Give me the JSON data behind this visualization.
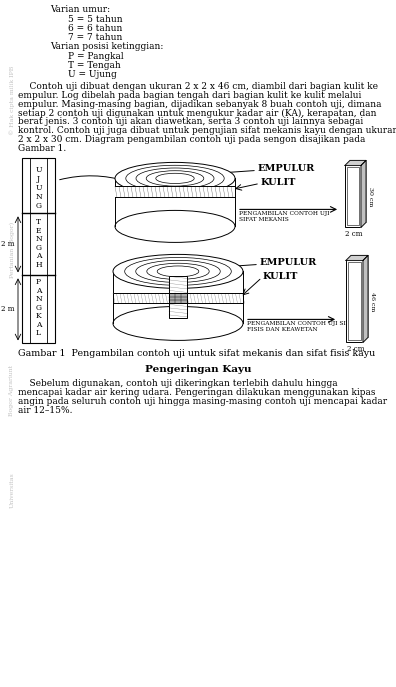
{
  "bg_color": "#ffffff",
  "text_color": "#000000",
  "caption": "Gambar 1  Pengambilan contoh uji untuk sifat mekanis dan sifat fisis kayu",
  "section_title": "Pengeringan Kayu",
  "paragraph2": "Sebelum digunakan, contoh uji dikeringkan terlebih dahulu hingga\nmencapai kadar air kering udara. Pengeringan dilakukan menggunakan kipas\nangin pada seluruh contoh uji hingga masing-masing contoh uji mencapai kadar\nair 12–15%."
}
